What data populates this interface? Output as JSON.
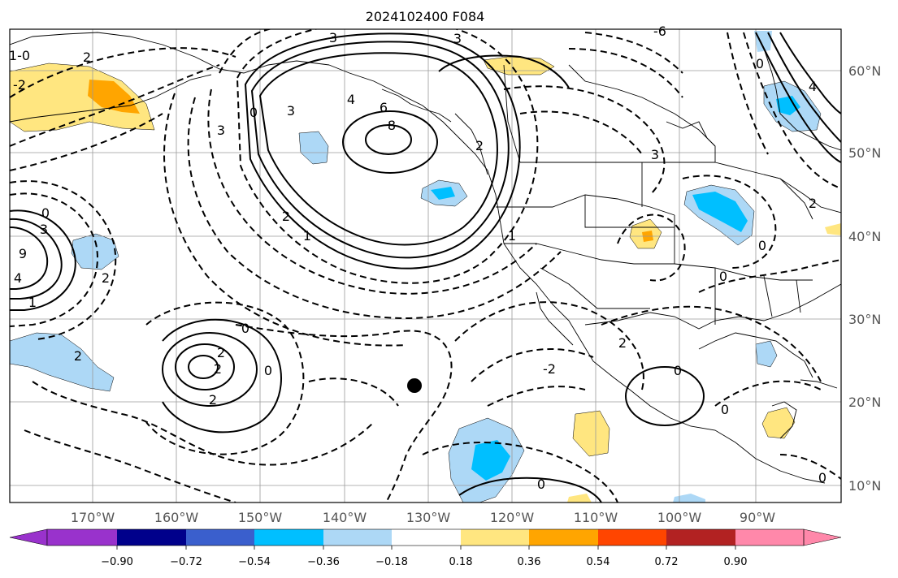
{
  "title": "2024102400 F084",
  "lon_labels": [
    "170°W",
    "160°W",
    "150°W",
    "140°W",
    "130°W",
    "120°W",
    "110°W",
    "100°W",
    "90°W"
  ],
  "lat_labels": [
    "60°N",
    "50°N",
    "40°N",
    "30°N",
    "20°N",
    "10°N"
  ],
  "colorbar": {
    "colors": [
      "#9932cc",
      "#00008b",
      "#3a5fcd",
      "#00bfff",
      "#add8f6",
      "#ffffff",
      "#ffe680",
      "#ffa500",
      "#ff4500",
      "#b22222",
      "#ff88aa"
    ],
    "tick_labels": [
      "−0.90",
      "−0.72",
      "−0.54",
      "−0.36",
      "−0.18",
      "0.18",
      "0.36",
      "0.54",
      "0.72",
      "0.90"
    ]
  },
  "contour_labels": [
    "3",
    "3",
    "2",
    "-6",
    "0",
    "4",
    "1-0",
    "-2",
    "4",
    "3",
    "6",
    "8",
    "2",
    "1",
    "0",
    "3",
    "3",
    "2",
    "1",
    "0",
    "0",
    "3",
    "4",
    "9",
    "1",
    "2",
    "2",
    "0",
    "2",
    "2",
    "2",
    "0",
    "-2",
    "2",
    "0",
    "0",
    "0",
    "0",
    "2",
    "0"
  ],
  "storm_marker": "tropical-cyclone-position"
}
